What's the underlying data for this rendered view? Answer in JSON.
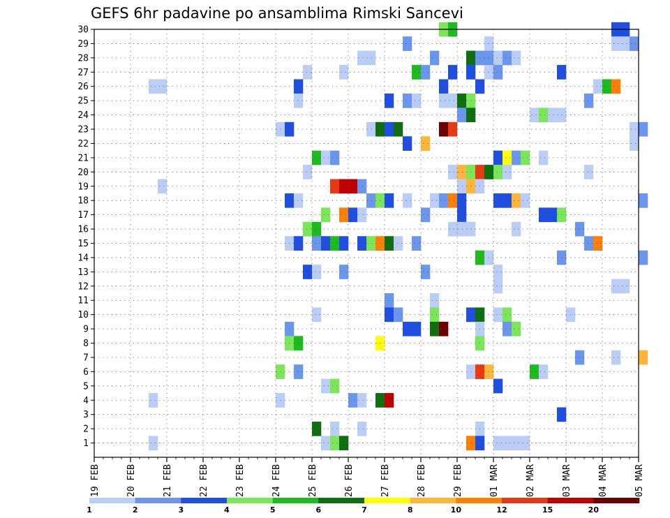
{
  "chart_data": {
    "type": "heatmap",
    "title": "GEFS 6hr padavine po ansamblima Rimski Sancevi",
    "xlabel": "",
    "ylabel": "",
    "x_tick_labels": [
      "19 FEB",
      "20 FEB",
      "21 FEB",
      "22 FEB",
      "23 FEB",
      "24 FEB",
      "25 FEB",
      "26 FEB",
      "27 FEB",
      "28 FEB",
      "29 FEB",
      "01 MAR",
      "02 MAR",
      "03 MAR",
      "04 MAR",
      "05 MAR"
    ],
    "y_tick_labels": [
      "1",
      "2",
      "3",
      "4",
      "5",
      "6",
      "7",
      "8",
      "9",
      "10",
      "11",
      "12",
      "13",
      "14",
      "15",
      "16",
      "17",
      "18",
      "19",
      "20",
      "21",
      "22",
      "23",
      "24",
      "25",
      "26",
      "27",
      "28",
      "29",
      "30"
    ],
    "x_range_days": [
      0,
      15
    ],
    "y_range_members": [
      0,
      30
    ],
    "time_step_days": 0.25,
    "grid": true,
    "colorbar": {
      "placement": "bottom",
      "tick_labels": [
        "1",
        "2",
        "3",
        "4",
        "5",
        "6",
        "7",
        "8",
        "10",
        "12",
        "15",
        "20"
      ],
      "colors": [
        "#b9cdf7",
        "#6b96ee",
        "#1f4fe0",
        "#7ce65a",
        "#1dbb1d",
        "#0f6e0f",
        "#ffff00",
        "#ffb53a",
        "#ff7f00",
        "#e83a12",
        "#c00000",
        "#6e0000"
      ]
    },
    "level_colors": {
      "1": "#b9cdf7",
      "2": "#6b96ee",
      "3": "#1f4fe0",
      "4": "#7ce65a",
      "5": "#1dbb1d",
      "6": "#0f6e0f",
      "7": "#ffff00",
      "8": "#ffb53a",
      "9": "#ff7f00",
      "10": "#e83a12",
      "11": "#c00000",
      "12": "#6e0000"
    },
    "cells": [
      [
        30,
        9.5,
        4
      ],
      [
        30,
        9.75,
        5
      ],
      [
        30,
        14.25,
        3
      ],
      [
        30,
        14.5,
        3
      ],
      [
        29,
        8.5,
        2
      ],
      [
        29,
        10.75,
        1
      ],
      [
        29,
        14.25,
        1
      ],
      [
        29,
        14.5,
        1
      ],
      [
        29,
        14.75,
        2
      ],
      [
        28,
        7.25,
        1
      ],
      [
        28,
        7.5,
        1
      ],
      [
        28,
        9.25,
        2
      ],
      [
        28,
        10.25,
        6
      ],
      [
        28,
        10.5,
        2
      ],
      [
        28,
        10.75,
        2
      ],
      [
        28,
        11,
        1
      ],
      [
        28,
        11.25,
        2
      ],
      [
        28,
        11.5,
        1
      ],
      [
        27,
        5.75,
        1
      ],
      [
        27,
        6.75,
        1
      ],
      [
        27,
        8.75,
        5
      ],
      [
        27,
        9,
        2
      ],
      [
        27,
        9.75,
        3
      ],
      [
        27,
        10.25,
        3
      ],
      [
        27,
        10.75,
        1
      ],
      [
        27,
        11,
        2
      ],
      [
        27,
        12.75,
        3
      ],
      [
        26,
        1.5,
        1
      ],
      [
        26,
        1.75,
        1
      ],
      [
        26,
        5.5,
        3
      ],
      [
        26,
        9.5,
        3
      ],
      [
        26,
        10.5,
        3
      ],
      [
        26,
        13.75,
        1
      ],
      [
        26,
        14,
        5
      ],
      [
        26,
        14.25,
        9
      ],
      [
        25,
        5.5,
        1
      ],
      [
        25,
        8,
        3
      ],
      [
        25,
        8.5,
        2
      ],
      [
        25,
        8.75,
        1
      ],
      [
        25,
        9.5,
        1
      ],
      [
        25,
        9.75,
        1
      ],
      [
        25,
        10,
        6
      ],
      [
        25,
        10.25,
        4
      ],
      [
        25,
        13.5,
        2
      ],
      [
        24,
        10,
        2
      ],
      [
        24,
        10.25,
        6
      ],
      [
        24,
        12,
        1
      ],
      [
        24,
        12.25,
        4
      ],
      [
        24,
        12.5,
        1
      ],
      [
        24,
        12.75,
        1
      ],
      [
        23,
        5,
        1
      ],
      [
        23,
        5.25,
        3
      ],
      [
        23,
        7.5,
        1
      ],
      [
        23,
        7.75,
        6
      ],
      [
        23,
        8,
        3
      ],
      [
        23,
        8.25,
        6
      ],
      [
        23,
        9.5,
        12
      ],
      [
        23,
        9.75,
        10
      ],
      [
        23,
        14.75,
        1
      ],
      [
        23,
        15,
        2
      ],
      [
        22,
        8.5,
        3
      ],
      [
        22,
        9,
        8
      ],
      [
        22,
        14.75,
        1
      ],
      [
        21,
        6,
        5
      ],
      [
        21,
        6.25,
        1
      ],
      [
        21,
        6.5,
        2
      ],
      [
        21,
        11,
        3
      ],
      [
        21,
        11.25,
        7
      ],
      [
        21,
        11.5,
        2
      ],
      [
        21,
        11.75,
        4
      ],
      [
        21,
        12.25,
        1
      ],
      [
        20,
        5.75,
        1
      ],
      [
        20,
        9.75,
        1
      ],
      [
        20,
        10,
        8
      ],
      [
        20,
        10.25,
        4
      ],
      [
        20,
        10.5,
        10
      ],
      [
        20,
        10.75,
        6
      ],
      [
        20,
        11,
        4
      ],
      [
        20,
        11.25,
        1
      ],
      [
        20,
        13.5,
        1
      ],
      [
        19,
        1.75,
        1
      ],
      [
        19,
        6.5,
        10
      ],
      [
        19,
        6.75,
        11
      ],
      [
        19,
        7,
        11
      ],
      [
        19,
        7.25,
        2
      ],
      [
        19,
        10,
        1
      ],
      [
        19,
        10.25,
        8
      ],
      [
        19,
        10.5,
        1
      ],
      [
        18,
        5.25,
        3
      ],
      [
        18,
        5.5,
        1
      ],
      [
        18,
        7.5,
        2
      ],
      [
        18,
        7.75,
        4
      ],
      [
        18,
        8,
        3
      ],
      [
        18,
        8.5,
        1
      ],
      [
        18,
        9.25,
        1
      ],
      [
        18,
        9.5,
        2
      ],
      [
        18,
        9.75,
        9
      ],
      [
        18,
        10,
        3
      ],
      [
        18,
        11,
        3
      ],
      [
        18,
        11.25,
        3
      ],
      [
        18,
        11.5,
        8
      ],
      [
        18,
        11.75,
        1
      ],
      [
        18,
        15,
        2
      ],
      [
        17,
        6.25,
        4
      ],
      [
        17,
        6.75,
        9
      ],
      [
        17,
        7,
        3
      ],
      [
        17,
        7.25,
        1
      ],
      [
        17,
        9,
        2
      ],
      [
        17,
        10,
        3
      ],
      [
        17,
        12.25,
        3
      ],
      [
        17,
        12.5,
        3
      ],
      [
        17,
        12.75,
        4
      ],
      [
        16,
        5.75,
        4
      ],
      [
        16,
        6,
        5
      ],
      [
        16,
        9.75,
        1
      ],
      [
        16,
        10,
        1
      ],
      [
        16,
        10.25,
        1
      ],
      [
        16,
        11.5,
        1
      ],
      [
        16,
        13.25,
        2
      ],
      [
        15,
        5.25,
        1
      ],
      [
        15,
        5.5,
        3
      ],
      [
        15,
        6,
        2
      ],
      [
        15,
        6.25,
        3
      ],
      [
        15,
        6.5,
        5
      ],
      [
        15,
        6.75,
        3
      ],
      [
        15,
        7.25,
        3
      ],
      [
        15,
        7.5,
        4
      ],
      [
        15,
        7.75,
        9
      ],
      [
        15,
        8,
        6
      ],
      [
        15,
        8.25,
        1
      ],
      [
        15,
        8.75,
        2
      ],
      [
        15,
        13.5,
        2
      ],
      [
        15,
        13.75,
        9
      ],
      [
        14,
        1,
        0
      ],
      [
        14,
        10.5,
        5
      ],
      [
        14,
        10.75,
        1
      ],
      [
        14,
        12.75,
        2
      ],
      [
        14,
        15,
        2
      ],
      [
        13,
        5.75,
        3
      ],
      [
        13,
        6,
        1
      ],
      [
        13,
        6.75,
        2
      ],
      [
        13,
        9,
        2
      ],
      [
        13,
        11,
        1
      ],
      [
        12,
        11,
        1
      ],
      [
        12,
        14.25,
        1
      ],
      [
        12,
        14.5,
        1
      ],
      [
        11,
        8,
        2
      ],
      [
        11,
        9.25,
        1
      ],
      [
        10,
        6,
        1
      ],
      [
        10,
        8,
        3
      ],
      [
        10,
        8.25,
        2
      ],
      [
        10,
        9.25,
        4
      ],
      [
        10,
        10.25,
        3
      ],
      [
        10,
        10.5,
        6
      ],
      [
        10,
        11,
        1
      ],
      [
        10,
        11.25,
        4
      ],
      [
        10,
        13,
        1
      ],
      [
        9,
        5.25,
        2
      ],
      [
        9,
        8.5,
        3
      ],
      [
        9,
        8.75,
        3
      ],
      [
        9,
        9.25,
        6
      ],
      [
        9,
        9.5,
        12
      ],
      [
        9,
        10.5,
        1
      ],
      [
        9,
        11.25,
        2
      ],
      [
        9,
        11.5,
        4
      ],
      [
        8,
        5.25,
        4
      ],
      [
        8,
        5.5,
        5
      ],
      [
        8,
        7.75,
        7
      ],
      [
        8,
        10.5,
        4
      ],
      [
        7,
        13.25,
        2
      ],
      [
        7,
        14.25,
        1
      ],
      [
        7,
        15,
        8
      ],
      [
        6,
        5,
        4
      ],
      [
        6,
        5.5,
        2
      ],
      [
        6,
        10.25,
        1
      ],
      [
        6,
        10.5,
        10
      ],
      [
        6,
        10.75,
        8
      ],
      [
        6,
        12,
        5
      ],
      [
        6,
        12.25,
        1
      ],
      [
        5,
        6.25,
        1
      ],
      [
        5,
        6.5,
        4
      ],
      [
        5,
        11,
        3
      ],
      [
        4,
        1.5,
        1
      ],
      [
        4,
        5,
        1
      ],
      [
        4,
        7,
        2
      ],
      [
        4,
        7.25,
        1
      ],
      [
        4,
        7.75,
        6
      ],
      [
        4,
        8,
        11
      ],
      [
        3,
        12.75,
        3
      ],
      [
        2,
        6,
        6
      ],
      [
        2,
        6.5,
        1
      ],
      [
        2,
        7.25,
        1
      ],
      [
        2,
        10.5,
        1
      ],
      [
        1,
        1.5,
        1
      ],
      [
        1,
        6.25,
        1
      ],
      [
        1,
        6.5,
        4
      ],
      [
        1,
        6.75,
        6
      ],
      [
        1,
        10.25,
        9
      ],
      [
        1,
        10.5,
        3
      ],
      [
        1,
        11,
        1
      ],
      [
        1,
        11.25,
        1
      ],
      [
        1,
        11.5,
        1
      ],
      [
        1,
        11.75,
        1
      ]
    ]
  }
}
